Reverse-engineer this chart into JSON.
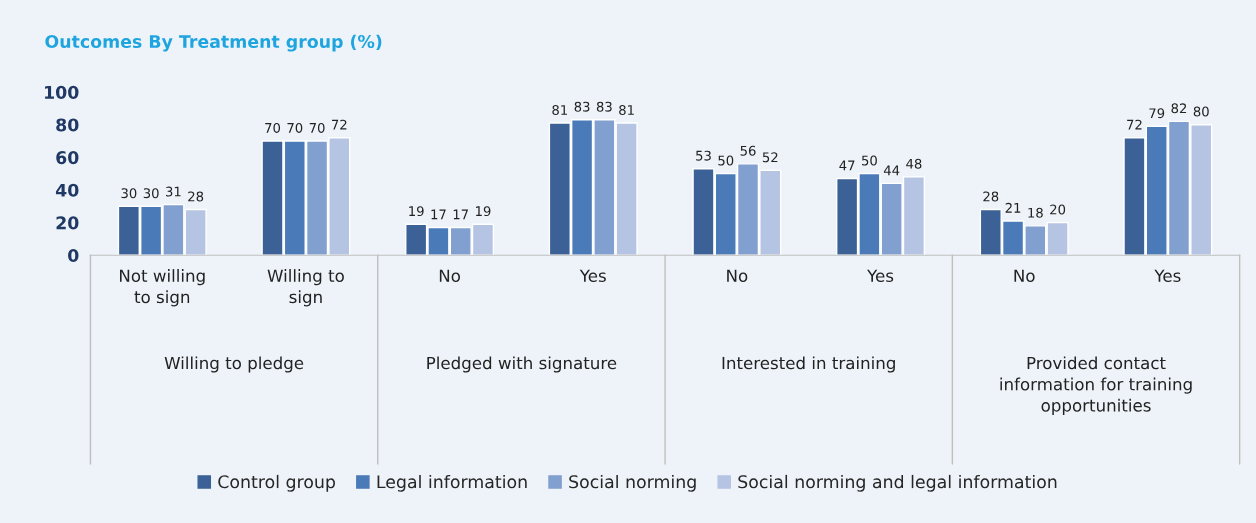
{
  "chart_data": {
    "type": "bar",
    "title": "Outcomes By Treatment group (%)",
    "categories": [
      "Not willing\nto sign",
      "Willing to\nsign",
      "No",
      "Yes",
      "No",
      "Yes",
      "No",
      "Yes"
    ],
    "annotations": [
      "Willing to pledge",
      "Pledged with signature",
      "Interested in training",
      "Provided contact\ninformation for training\nopportunities"
    ],
    "series": [
      {
        "name": "Control group",
        "color": "#3b6196",
        "values": [
          30,
          70,
          19,
          81,
          53,
          47,
          28,
          72
        ]
      },
      {
        "name": "Legal information",
        "color": "#4a7ab8",
        "values": [
          30,
          70,
          17,
          83,
          50,
          50,
          21,
          79
        ]
      },
      {
        "name": "Social norming",
        "color": "#819fcf",
        "values": [
          31,
          70,
          17,
          83,
          56,
          44,
          18,
          82
        ]
      },
      {
        "name": "Social norming and legal information",
        "color": "#b5c4e2",
        "values": [
          28,
          72,
          19,
          81,
          52,
          48,
          20,
          80
        ]
      }
    ],
    "ylim": [
      0,
      100
    ],
    "yticks": [
      0,
      20,
      40,
      60,
      80,
      100
    ],
    "data_labels": true,
    "grid": false,
    "legend": "bottom"
  }
}
